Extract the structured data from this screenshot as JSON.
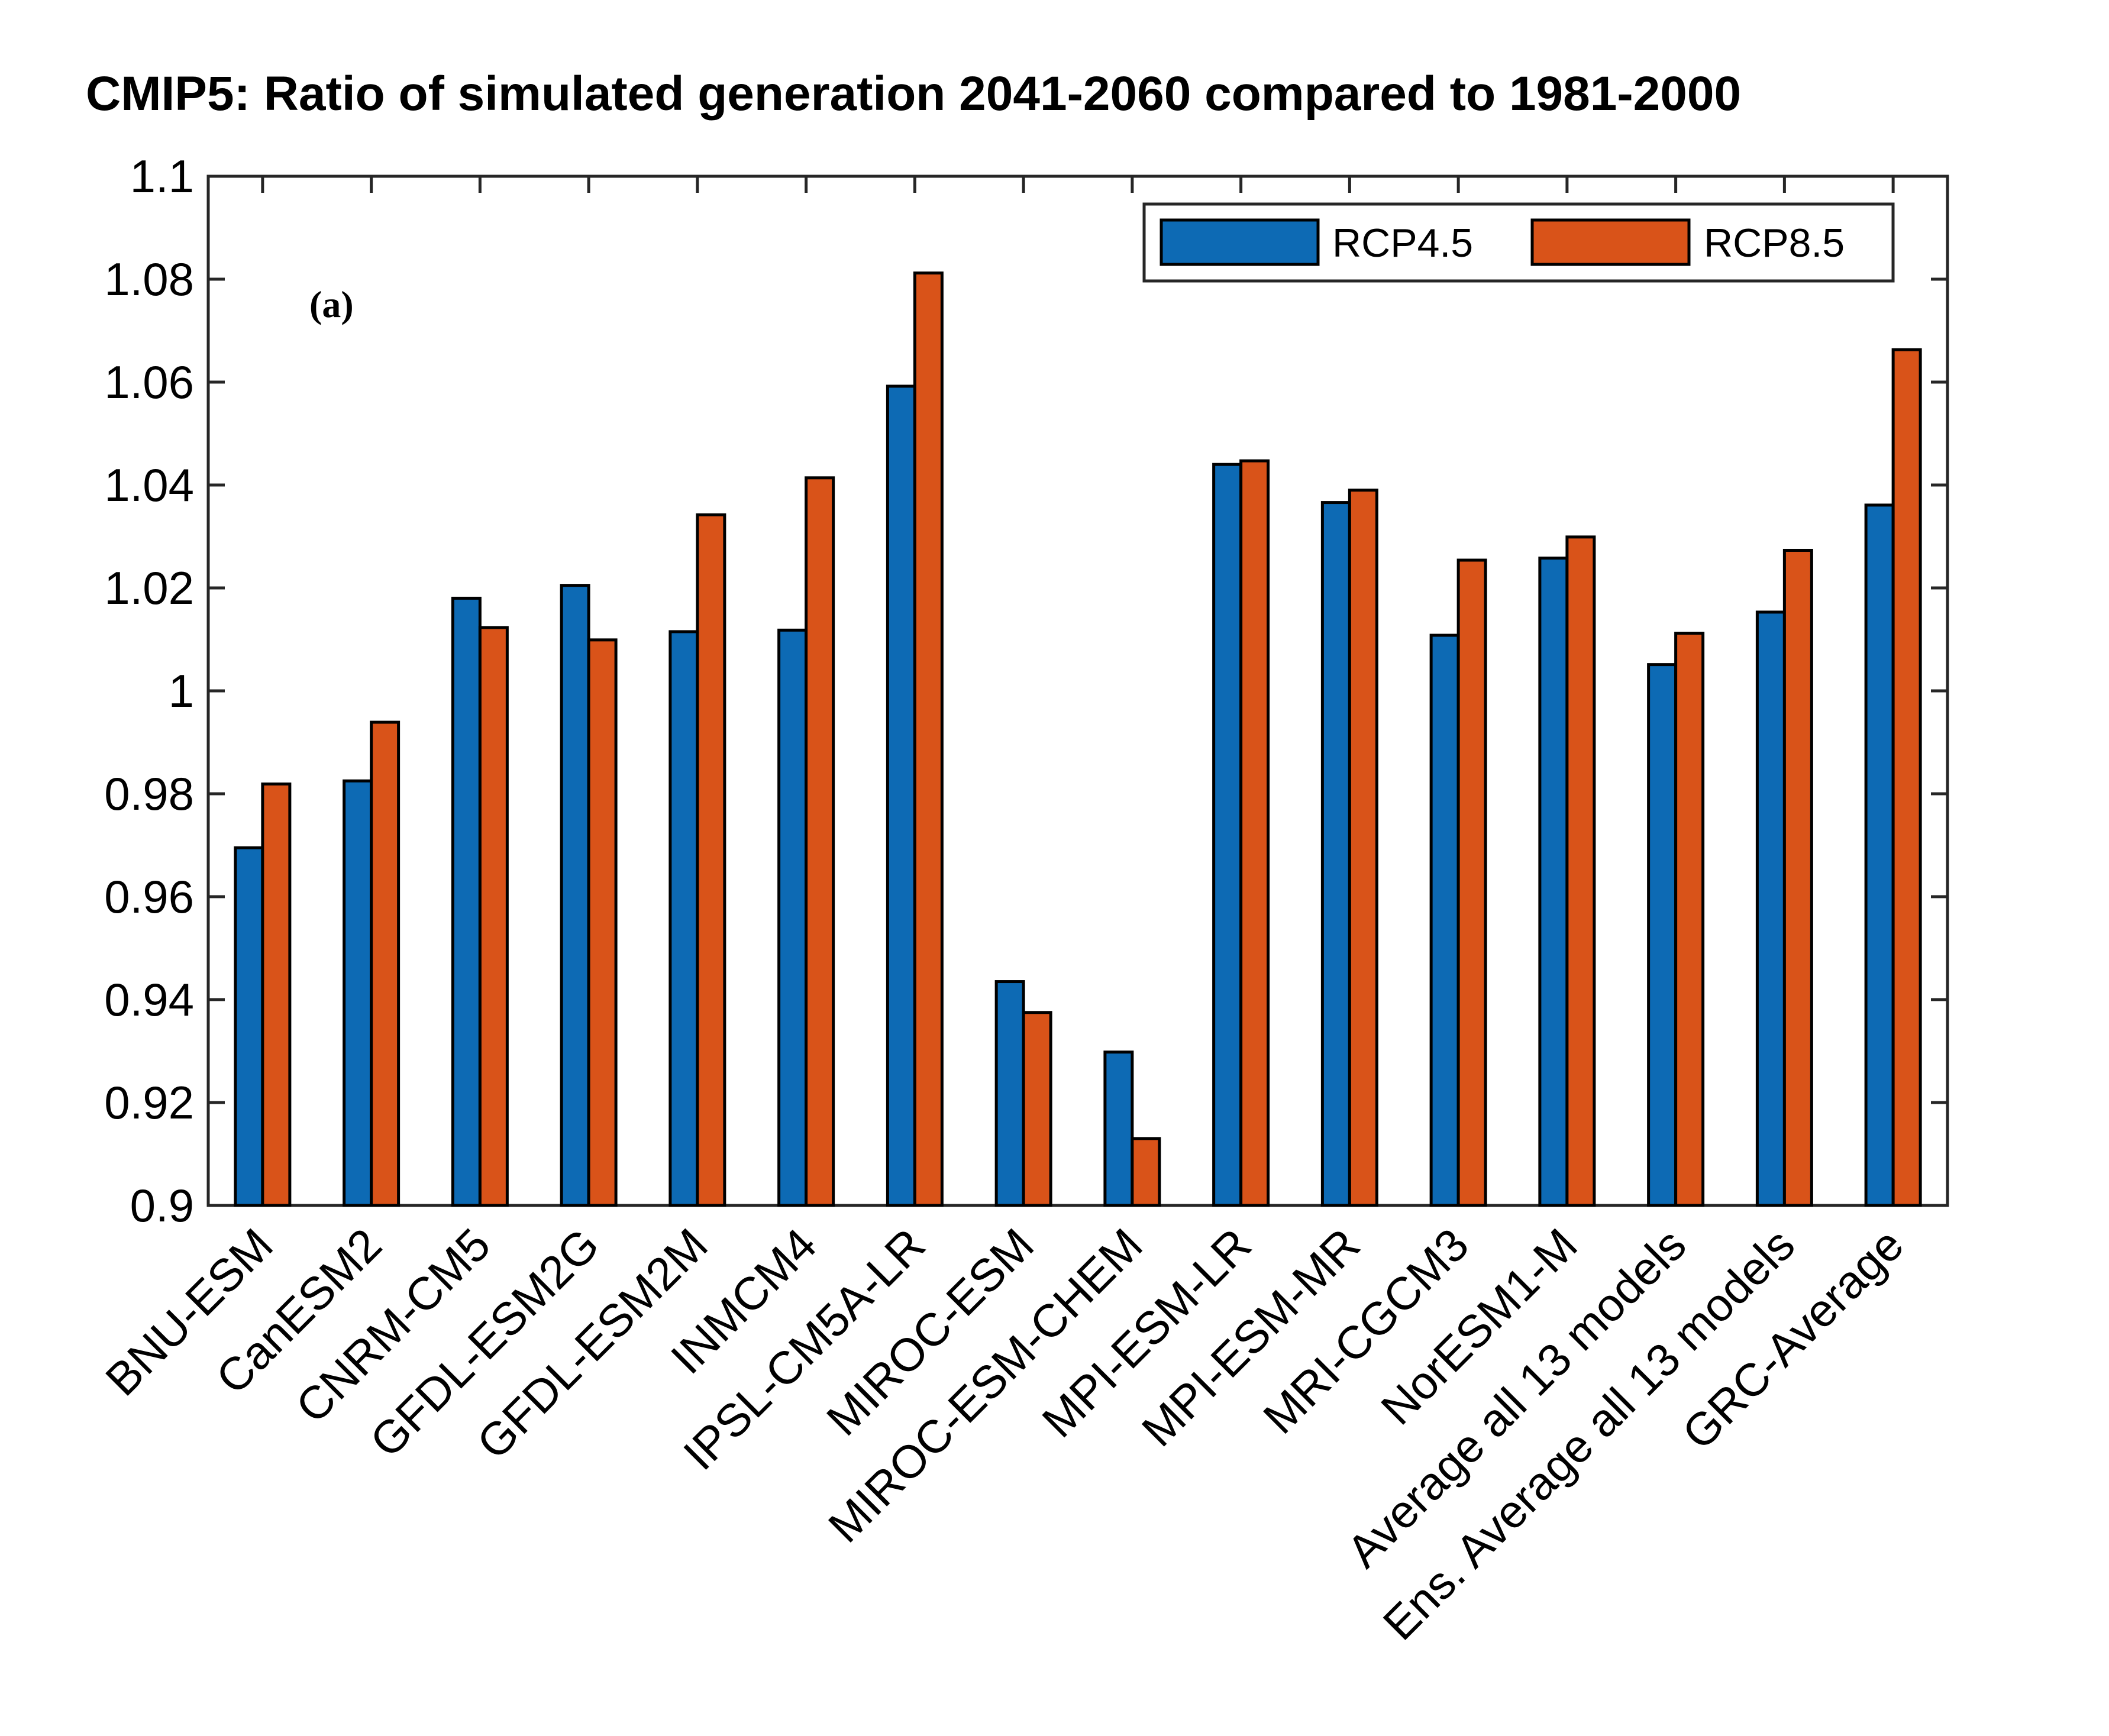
{
  "chart_data": {
    "type": "bar",
    "title": "CMIP5: Ratio of simulated generation 2041-2060 compared to 1981-2000",
    "panel_label": "(a)",
    "xlabel": "",
    "ylabel": "",
    "ylim": [
      0.9,
      1.1
    ],
    "yticks": [
      0.9,
      0.92,
      0.94,
      0.96,
      0.98,
      1.0,
      1.02,
      1.04,
      1.06,
      1.08,
      1.1
    ],
    "ytick_labels": [
      "0.9",
      "0.92",
      "0.94",
      "0.96",
      "0.98",
      "1",
      "1.02",
      "1.04",
      "1.06",
      "1.08",
      "1.1"
    ],
    "grid": false,
    "legend_position": "top-right",
    "categories": [
      "BNU-ESM",
      "CanESM2",
      "CNRM-CM5",
      "GFDL-ESM2G",
      "GFDL-ESM2M",
      "INMCM4",
      "IPSL-CM5A-LR",
      "MIROC-ESM",
      "MIROC-ESM-CHEM",
      "MPI-ESM-LR",
      "MPI-ESM-MR",
      "MRI-CGCM3",
      "NorESM1-M",
      "Average all 13 models",
      "Ens. Average all 13 models",
      "GRC-Average"
    ],
    "series": [
      {
        "name": "RCP4.5",
        "color": "#0d6ab4",
        "values": [
          0.9695,
          0.9825,
          1.018,
          1.0205,
          1.0115,
          1.0118,
          1.0592,
          0.9435,
          0.9298,
          1.044,
          1.0366,
          1.0108,
          1.0258,
          1.0051,
          1.0153,
          1.0361
        ]
      },
      {
        "name": "RCP8.5",
        "color": "#d95319",
        "values": [
          0.9819,
          0.9939,
          1.0123,
          1.0099,
          1.0342,
          1.0414,
          1.0812,
          0.9375,
          0.913,
          1.0447,
          1.039,
          1.0254,
          1.0299,
          1.0112,
          1.0273,
          1.0663
        ]
      }
    ]
  }
}
